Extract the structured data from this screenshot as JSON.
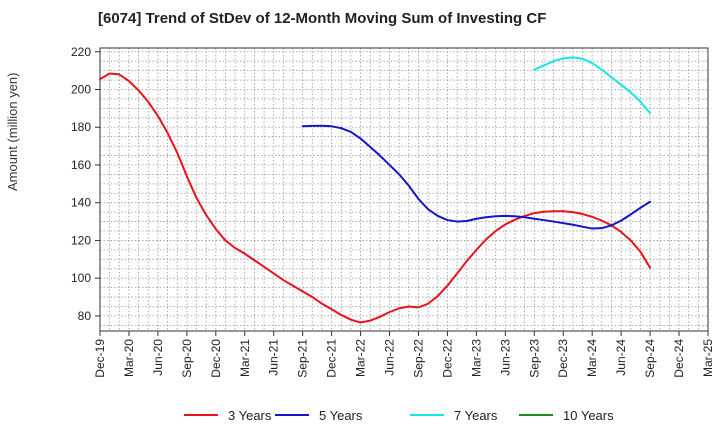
{
  "chart_data": {
    "type": "line",
    "title": "[6074]  Trend of StDev of 12-Month Moving Sum of Investing CF",
    "ylabel": "Amount (million yen)",
    "xlabel": "",
    "ylim": [
      72,
      222
    ],
    "yticks": [
      80,
      100,
      120,
      140,
      160,
      180,
      200,
      220
    ],
    "x_months": [
      "2019-12",
      "2020-03",
      "2020-06",
      "2020-09",
      "2020-12",
      "2021-03",
      "2021-06",
      "2021-09",
      "2021-12",
      "2022-03",
      "2022-06",
      "2022-09",
      "2022-12",
      "2023-03",
      "2023-06",
      "2023-09",
      "2023-12",
      "2024-03",
      "2024-06",
      "2024-09",
      "2024-12",
      "2025-03"
    ],
    "xticks": [
      "Dec-19",
      "Mar-20",
      "Jun-20",
      "Sep-20",
      "Dec-20",
      "Mar-21",
      "Jun-21",
      "Sep-21",
      "Dec-21",
      "Mar-22",
      "Jun-22",
      "Sep-22",
      "Dec-22",
      "Mar-23",
      "Jun-23",
      "Sep-23",
      "Dec-23",
      "Mar-24",
      "Jun-24",
      "Sep-24",
      "Dec-24",
      "Mar-25"
    ],
    "grid": true,
    "legend_position": "bottom",
    "series": [
      {
        "name": "3 Years",
        "color": "#e8141b",
        "points": [
          [
            "2019-12",
            205.5
          ],
          [
            "2020-01",
            208.5
          ],
          [
            "2020-02",
            208
          ],
          [
            "2020-03",
            204.5
          ],
          [
            "2020-04",
            199.5
          ],
          [
            "2020-05",
            193.5
          ],
          [
            "2020-06",
            186
          ],
          [
            "2020-07",
            177
          ],
          [
            "2020-08",
            166.5
          ],
          [
            "2020-09",
            154
          ],
          [
            "2020-10",
            142.5
          ],
          [
            "2020-11",
            133.5
          ],
          [
            "2020-12",
            126
          ],
          [
            "2021-01",
            120
          ],
          [
            "2021-02",
            116
          ],
          [
            "2021-03",
            113
          ],
          [
            "2021-04",
            109.5
          ],
          [
            "2021-05",
            106
          ],
          [
            "2021-06",
            102.5
          ],
          [
            "2021-07",
            99
          ],
          [
            "2021-08",
            96
          ],
          [
            "2021-09",
            93
          ],
          [
            "2021-10",
            90
          ],
          [
            "2021-11",
            86.5
          ],
          [
            "2021-12",
            83.5
          ],
          [
            "2022-01",
            80.5
          ],
          [
            "2022-02",
            78
          ],
          [
            "2022-03",
            76.5
          ],
          [
            "2022-04",
            77.5
          ],
          [
            "2022-05",
            79.5
          ],
          [
            "2022-06",
            82
          ],
          [
            "2022-07",
            84
          ],
          [
            "2022-08",
            85
          ],
          [
            "2022-09",
            84.5
          ],
          [
            "2022-10",
            86.5
          ],
          [
            "2022-11",
            90.5
          ],
          [
            "2022-12",
            96
          ],
          [
            "2023-01",
            102.5
          ],
          [
            "2023-02",
            109
          ],
          [
            "2023-03",
            115
          ],
          [
            "2023-04",
            120.5
          ],
          [
            "2023-05",
            125
          ],
          [
            "2023-06",
            128.5
          ],
          [
            "2023-07",
            131
          ],
          [
            "2023-08",
            133
          ],
          [
            "2023-09",
            134.5
          ],
          [
            "2023-10",
            135.2
          ],
          [
            "2023-11",
            135.5
          ],
          [
            "2023-12",
            135.5
          ],
          [
            "2024-01",
            135
          ],
          [
            "2024-02",
            134
          ],
          [
            "2024-03",
            132.5
          ],
          [
            "2024-04",
            130.5
          ],
          [
            "2024-05",
            128
          ],
          [
            "2024-06",
            124.5
          ],
          [
            "2024-07",
            120
          ],
          [
            "2024-08",
            114
          ],
          [
            "2024-09",
            105.5
          ]
        ]
      },
      {
        "name": "5 Years",
        "color": "#1414c8",
        "points": [
          [
            "2021-09",
            180.5
          ],
          [
            "2021-10",
            180.7
          ],
          [
            "2021-11",
            180.8
          ],
          [
            "2021-12",
            180.5
          ],
          [
            "2022-01",
            179.5
          ],
          [
            "2022-02",
            177.5
          ],
          [
            "2022-03",
            174
          ],
          [
            "2022-04",
            169.5
          ],
          [
            "2022-05",
            165
          ],
          [
            "2022-06",
            160
          ],
          [
            "2022-07",
            155
          ],
          [
            "2022-08",
            149
          ],
          [
            "2022-09",
            142
          ],
          [
            "2022-10",
            136.5
          ],
          [
            "2022-11",
            133
          ],
          [
            "2022-12",
            130.8
          ],
          [
            "2023-01",
            130
          ],
          [
            "2023-02",
            130.3
          ],
          [
            "2023-03",
            131.5
          ],
          [
            "2023-04",
            132.3
          ],
          [
            "2023-05",
            132.8
          ],
          [
            "2023-06",
            133
          ],
          [
            "2023-07",
            132.8
          ],
          [
            "2023-08",
            132.3
          ],
          [
            "2023-09",
            131.5
          ],
          [
            "2023-10",
            130.8
          ],
          [
            "2023-11",
            130
          ],
          [
            "2023-12",
            129.2
          ],
          [
            "2024-01",
            128.3
          ],
          [
            "2024-02",
            127.3
          ],
          [
            "2024-03",
            126.3
          ],
          [
            "2024-04",
            126.5
          ],
          [
            "2024-05",
            128
          ],
          [
            "2024-06",
            130.5
          ],
          [
            "2024-07",
            133.8
          ],
          [
            "2024-08",
            137.3
          ],
          [
            "2024-09",
            140.5
          ]
        ]
      },
      {
        "name": "7 Years",
        "color": "#14e6ee",
        "points": [
          [
            "2023-09",
            210.5
          ],
          [
            "2023-10",
            212.8
          ],
          [
            "2023-11",
            215
          ],
          [
            "2023-12",
            216.5
          ],
          [
            "2024-01",
            217
          ],
          [
            "2024-02",
            216.3
          ],
          [
            "2024-03",
            214
          ],
          [
            "2024-04",
            210.5
          ],
          [
            "2024-05",
            206.5
          ],
          [
            "2024-06",
            202.5
          ],
          [
            "2024-07",
            198.5
          ],
          [
            "2024-08",
            193.5
          ],
          [
            "2024-09",
            187.5
          ]
        ]
      },
      {
        "name": "10 Years",
        "color": "#1e8c1e",
        "points": []
      }
    ]
  }
}
